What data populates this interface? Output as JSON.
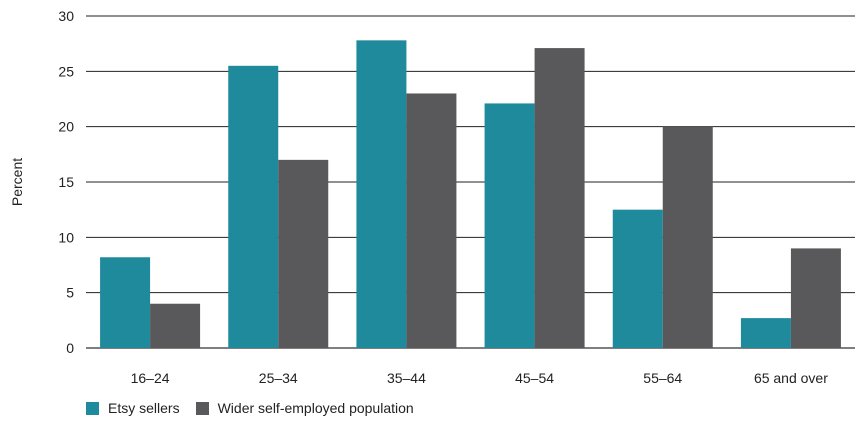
{
  "chart_data": {
    "type": "bar",
    "categories": [
      "16–24",
      "25–34",
      "35–44",
      "45–54",
      "55–64",
      "65 and over"
    ],
    "series": [
      {
        "name": "Etsy sellers",
        "values": [
          8.2,
          25.5,
          27.8,
          22.1,
          12.5,
          2.7
        ],
        "color": "#1f8a9c"
      },
      {
        "name": "Wider self-employed population",
        "values": [
          4.0,
          17.0,
          23.0,
          27.1,
          20.0,
          9.0
        ],
        "color": "#59595b"
      }
    ],
    "title": "",
    "xlabel": "",
    "ylabel": "Percent",
    "ylim": [
      0,
      30
    ],
    "yticks": [
      0,
      5,
      10,
      15,
      20,
      25,
      30
    ],
    "grid": true,
    "legend_position": "bottom-left"
  }
}
